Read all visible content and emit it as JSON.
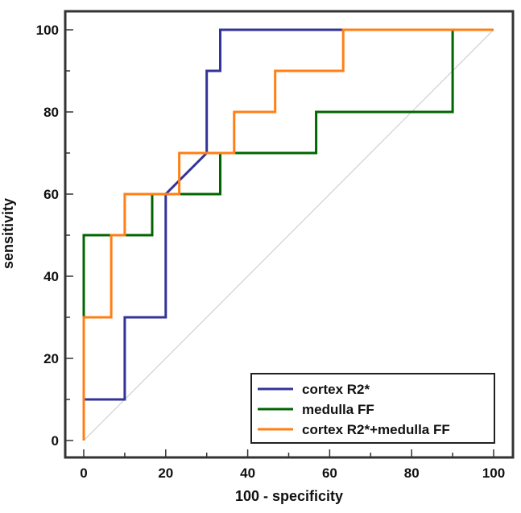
{
  "chart_data": {
    "type": "line",
    "subtype": "roc-step",
    "title": "",
    "xlabel": "100 - specificity",
    "ylabel": "sensitivity",
    "xlim": [
      0,
      100
    ],
    "ylim": [
      0,
      100
    ],
    "x_ticks": [
      0,
      20,
      40,
      60,
      80,
      100
    ],
    "y_ticks": [
      0,
      20,
      40,
      60,
      80,
      100
    ],
    "x_tick_labels": [
      "0",
      "20",
      "40",
      "60",
      "80",
      "100"
    ],
    "y_tick_labels": [
      "0",
      "20",
      "40",
      "60",
      "80",
      "100"
    ],
    "grid": false,
    "reference_line": {
      "from": [
        0,
        0
      ],
      "to": [
        100,
        100
      ],
      "color": "#c8c8c8"
    },
    "legend": {
      "position": "bottom-right"
    },
    "series": [
      {
        "name": "cortex R2*",
        "color": "#333399",
        "x": [
          0,
          0,
          10,
          10,
          20,
          20,
          30,
          30,
          33.3,
          33.3,
          100
        ],
        "y": [
          0,
          10,
          10,
          30,
          30,
          60,
          70,
          90,
          90,
          100,
          100
        ]
      },
      {
        "name": "medulla FF",
        "color": "#006600",
        "x": [
          0,
          0,
          16.7,
          16.7,
          33.3,
          33.3,
          56.7,
          56.7,
          90,
          90,
          100
        ],
        "y": [
          0,
          50,
          50,
          60,
          60,
          70,
          70,
          80,
          80,
          100,
          100
        ]
      },
      {
        "name": "cortex R2*+medulla FF",
        "color": "#ff7f15",
        "x": [
          0,
          0,
          6.7,
          6.7,
          10,
          10,
          23.3,
          23.3,
          36.7,
          36.7,
          46.7,
          46.7,
          63.3,
          63.3,
          100
        ],
        "y": [
          0,
          30,
          30,
          50,
          50,
          60,
          60,
          70,
          70,
          80,
          80,
          90,
          90,
          100,
          100
        ]
      }
    ]
  }
}
